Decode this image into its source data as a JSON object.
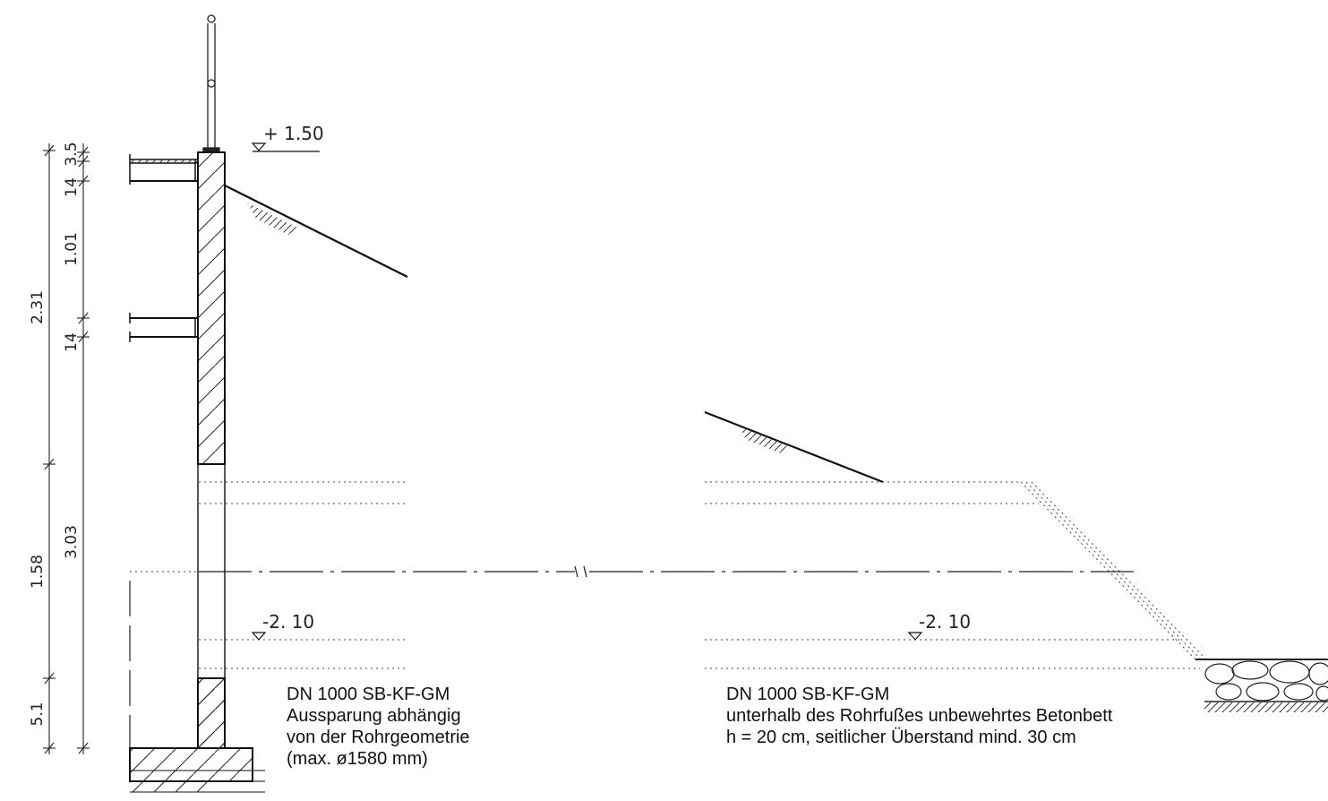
{
  "levels": {
    "top": "+ 1.50",
    "bottom_left": "-2. 10",
    "bottom_right": "-2. 10"
  },
  "dimensions": {
    "inner": {
      "d1": "3.5",
      "d2": "14",
      "d3": "1.01",
      "d4": "14",
      "d5": "3.03"
    },
    "outer": {
      "d1": "2.31",
      "d2": "1.58",
      "d3": "5.1"
    }
  },
  "notes": {
    "left": [
      "DN 1000 SB-KF-GM",
      "Aussparung abhängig",
      "von der Rohrgeometrie",
      "(max. ø1580 mm)"
    ],
    "right": [
      "DN 1000 SB-KF-GM",
      "unterhalb des Rohrfußes unbewehrtes Betonbett",
      "h = 20 cm, seitlicher Überstand mind. 30 cm"
    ]
  }
}
